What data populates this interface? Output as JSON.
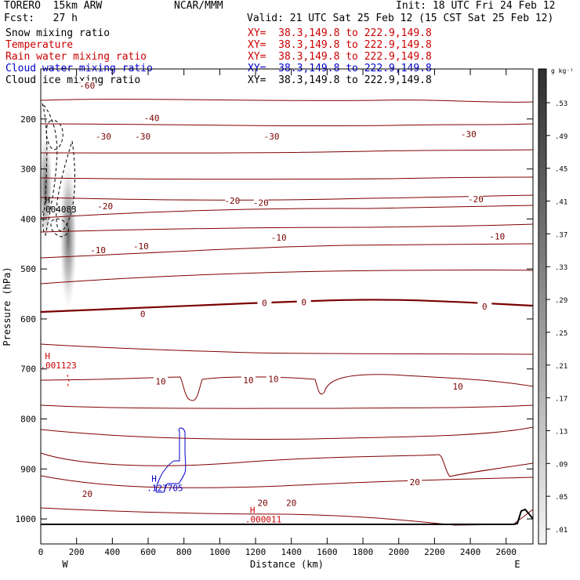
{
  "header": {
    "model": "TORERO  15km ARW",
    "forecast": "Fcst:   27 h",
    "center": "NCAR/MMM",
    "init": "Init: 18 UTC Fri 24 Feb 12",
    "valid": "Valid: 21 UTC Sat 25 Feb 12 (15 CST Sat 25 Feb 12)"
  },
  "fields": [
    {
      "name": "Snow mixing ratio",
      "xy": "XY=  38.3,149.8 to 222.9,149.8",
      "color": "#000000"
    },
    {
      "name": "Temperature",
      "xy": "XY=  38.3,149.8 to 222.9,149.8",
      "color": "#cc0000"
    },
    {
      "name": "Rain water mixing ratio",
      "xy": "XY=  38.3,149.8 to 222.9,149.8",
      "color": "#cc0000"
    },
    {
      "name": "Cloud water mixing ratio",
      "xy": "XY=  38.3,149.8 to 222.9,149.8",
      "color": "#0000cc"
    },
    {
      "name": "Cloud ice mixing ratio",
      "xy": "XY=  38.3,149.8 to 222.9,149.8",
      "color": "#000000"
    }
  ],
  "colorbar": {
    "unit": "g kg⁻¹",
    "ticks": [
      ".53",
      ".49",
      ".45",
      ".41",
      ".37",
      ".33",
      ".29",
      ".25",
      ".21",
      ".17",
      ".13",
      ".09",
      ".05",
      ".01"
    ]
  },
  "chart_data": {
    "type": "cross-section contour",
    "xlabel": "Distance (km)",
    "ylabel": "Pressure (hPa)",
    "xlim": [
      0,
      2750
    ],
    "ylim": [
      1050,
      100
    ],
    "x_ticks": [
      0,
      200,
      400,
      600,
      800,
      1000,
      1200,
      1400,
      1600,
      1800,
      2000,
      2200,
      2400,
      2600
    ],
    "y_ticks": [
      200,
      300,
      400,
      500,
      600,
      700,
      800,
      900,
      1000
    ],
    "endpoints": {
      "left": "W",
      "right": "E"
    },
    "temperature_labels": [
      {
        "value": "-60",
        "x": 260,
        "p": 133
      },
      {
        "value": "-40",
        "x": 620,
        "p": 198
      },
      {
        "value": "-30",
        "x": 350,
        "p": 235
      },
      {
        "value": "-30",
        "x": 570,
        "p": 235
      },
      {
        "value": "-30",
        "x": 1290,
        "p": 235
      },
      {
        "value": "-30",
        "x": 2390,
        "p": 230
      },
      {
        "value": "-20",
        "x": 360,
        "p": 374
      },
      {
        "value": "-20",
        "x": 1070,
        "p": 363
      },
      {
        "value": "-20",
        "x": 1230,
        "p": 367
      },
      {
        "value": "-20",
        "x": 2430,
        "p": 360
      },
      {
        "value": "-10",
        "x": 320,
        "p": 462
      },
      {
        "value": "-10",
        "x": 560,
        "p": 454
      },
      {
        "value": "-10",
        "x": 1330,
        "p": 437
      },
      {
        "value": "-10",
        "x": 2550,
        "p": 435
      },
      {
        "value": "0",
        "x": 570,
        "p": 590
      },
      {
        "value": "0",
        "x": 1250,
        "p": 568
      },
      {
        "value": "0",
        "x": 1470,
        "p": 566
      },
      {
        "value": "0",
        "x": 2480,
        "p": 575
      },
      {
        "value": "10",
        "x": 670,
        "p": 725
      },
      {
        "value": "10",
        "x": 1160,
        "p": 722
      },
      {
        "value": "10",
        "x": 1300,
        "p": 720
      },
      {
        "value": "10",
        "x": 2330,
        "p": 735
      },
      {
        "value": "20",
        "x": 260,
        "p": 950
      },
      {
        "value": "20",
        "x": 1240,
        "p": 968
      },
      {
        "value": "20",
        "x": 1400,
        "p": 968
      },
      {
        "value": "20",
        "x": 2090,
        "p": 926
      }
    ],
    "maxima": [
      {
        "label": "H",
        "value": ".004083",
        "x": 85,
        "p": 368,
        "field": "Cloud ice mixing ratio"
      },
      {
        "label": "H",
        "value": ".001123",
        "x": 85,
        "p": 680,
        "field": "Rain water mixing ratio"
      },
      {
        "label": "H",
        "value": ".127705",
        "x": 680,
        "p": 925,
        "field": "Cloud water mixing ratio"
      },
      {
        "label": "H",
        "value": ".000011",
        "x": 1230,
        "p": 988,
        "field": "Rain water mixing ratio"
      }
    ]
  }
}
